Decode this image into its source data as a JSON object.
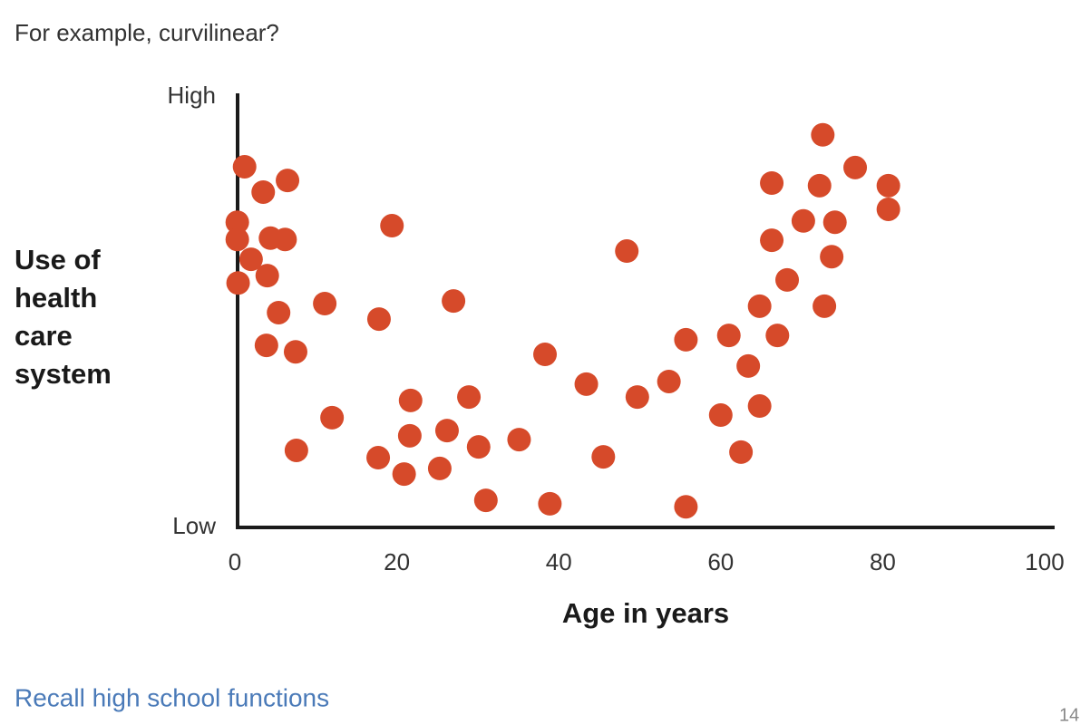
{
  "header": {
    "text": "For example, curvilinear?"
  },
  "footer": {
    "link": "Recall high school functions",
    "page": "14"
  },
  "chart_data": {
    "type": "scatter",
    "xlabel": "Age in years",
    "ylabel": "Use of health care system",
    "color": "#d64a2a",
    "xlim": [
      0,
      100
    ],
    "xticks": [
      0,
      20,
      40,
      60,
      80,
      100
    ],
    "ylim": [
      0,
      100
    ],
    "yticks": [
      {
        "value": 0,
        "label": "Low"
      },
      {
        "value": 100,
        "label": "High"
      }
    ],
    "x": [
      1.2,
      3.5,
      6.5,
      0.3,
      0.3,
      4.4,
      6.2,
      2.0,
      4.0,
      0.4,
      19.4,
      5.4,
      11.1,
      3.9,
      7.5,
      17.8,
      27.0,
      12.0,
      7.6,
      21.7,
      21.6,
      17.7,
      20.9,
      25.3,
      26.2,
      28.9,
      30.1,
      31.0,
      35.1,
      38.3,
      38.9,
      43.4,
      45.5,
      48.4,
      49.7,
      53.6,
      55.7,
      55.7,
      60.0,
      61.0,
      62.5,
      63.4,
      64.8,
      64.8,
      66.3,
      66.3,
      67.0,
      68.2,
      70.2,
      72.2,
      72.6,
      72.8,
      73.7,
      74.1,
      76.6,
      80.7,
      80.7
    ],
    "values": [
      83.8,
      77.9,
      80.6,
      70.9,
      66.9,
      67.2,
      66.9,
      62.3,
      58.5,
      56.8,
      70.1,
      49.9,
      52.0,
      42.3,
      40.8,
      48.4,
      52.6,
      25.5,
      17.9,
      29.5,
      21.3,
      16.2,
      12.4,
      13.7,
      22.5,
      30.3,
      18.7,
      6.3,
      20.4,
      40.2,
      5.5,
      33.3,
      16.4,
      64.2,
      30.3,
      33.9,
      43.6,
      4.8,
      26.1,
      44.6,
      17.5,
      37.5,
      28.2,
      51.4,
      80.0,
      66.7,
      44.6,
      57.5,
      71.2,
      79.4,
      91.2,
      51.4,
      62.9,
      70.9,
      83.6,
      79.4,
      73.9
    ]
  }
}
